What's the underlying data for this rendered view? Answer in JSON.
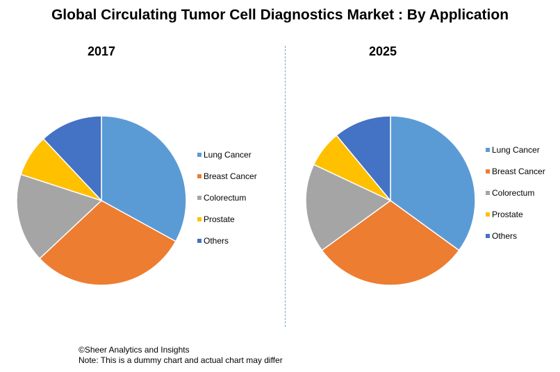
{
  "title": "Global Circulating Tumor Cell Diagnostics Market : By Application",
  "chart_data": [
    {
      "type": "pie",
      "title": "2017",
      "categories": [
        "Lung Cancer",
        "Breast Cancer",
        "Colorectum",
        "Prostate",
        "Others"
      ],
      "values": [
        33,
        30,
        17,
        8,
        12
      ],
      "colors": [
        "#5b9bd5",
        "#ed7d31",
        "#a5a5a5",
        "#ffc000",
        "#4472c4"
      ],
      "legend": "right"
    },
    {
      "type": "pie",
      "title": "2025",
      "categories": [
        "Lung Cancer",
        "Breast Cancer",
        "Colorectum",
        "Prostate",
        "Others"
      ],
      "values": [
        35,
        30,
        17,
        7,
        11
      ],
      "colors": [
        "#5b9bd5",
        "#ed7d31",
        "#a5a5a5",
        "#ffc000",
        "#4472c4"
      ],
      "legend": "right"
    }
  ],
  "footer": {
    "copyright": "©Sheer Analytics and Insights",
    "note": "Note: This is a dummy chart and actual chart may differ"
  }
}
